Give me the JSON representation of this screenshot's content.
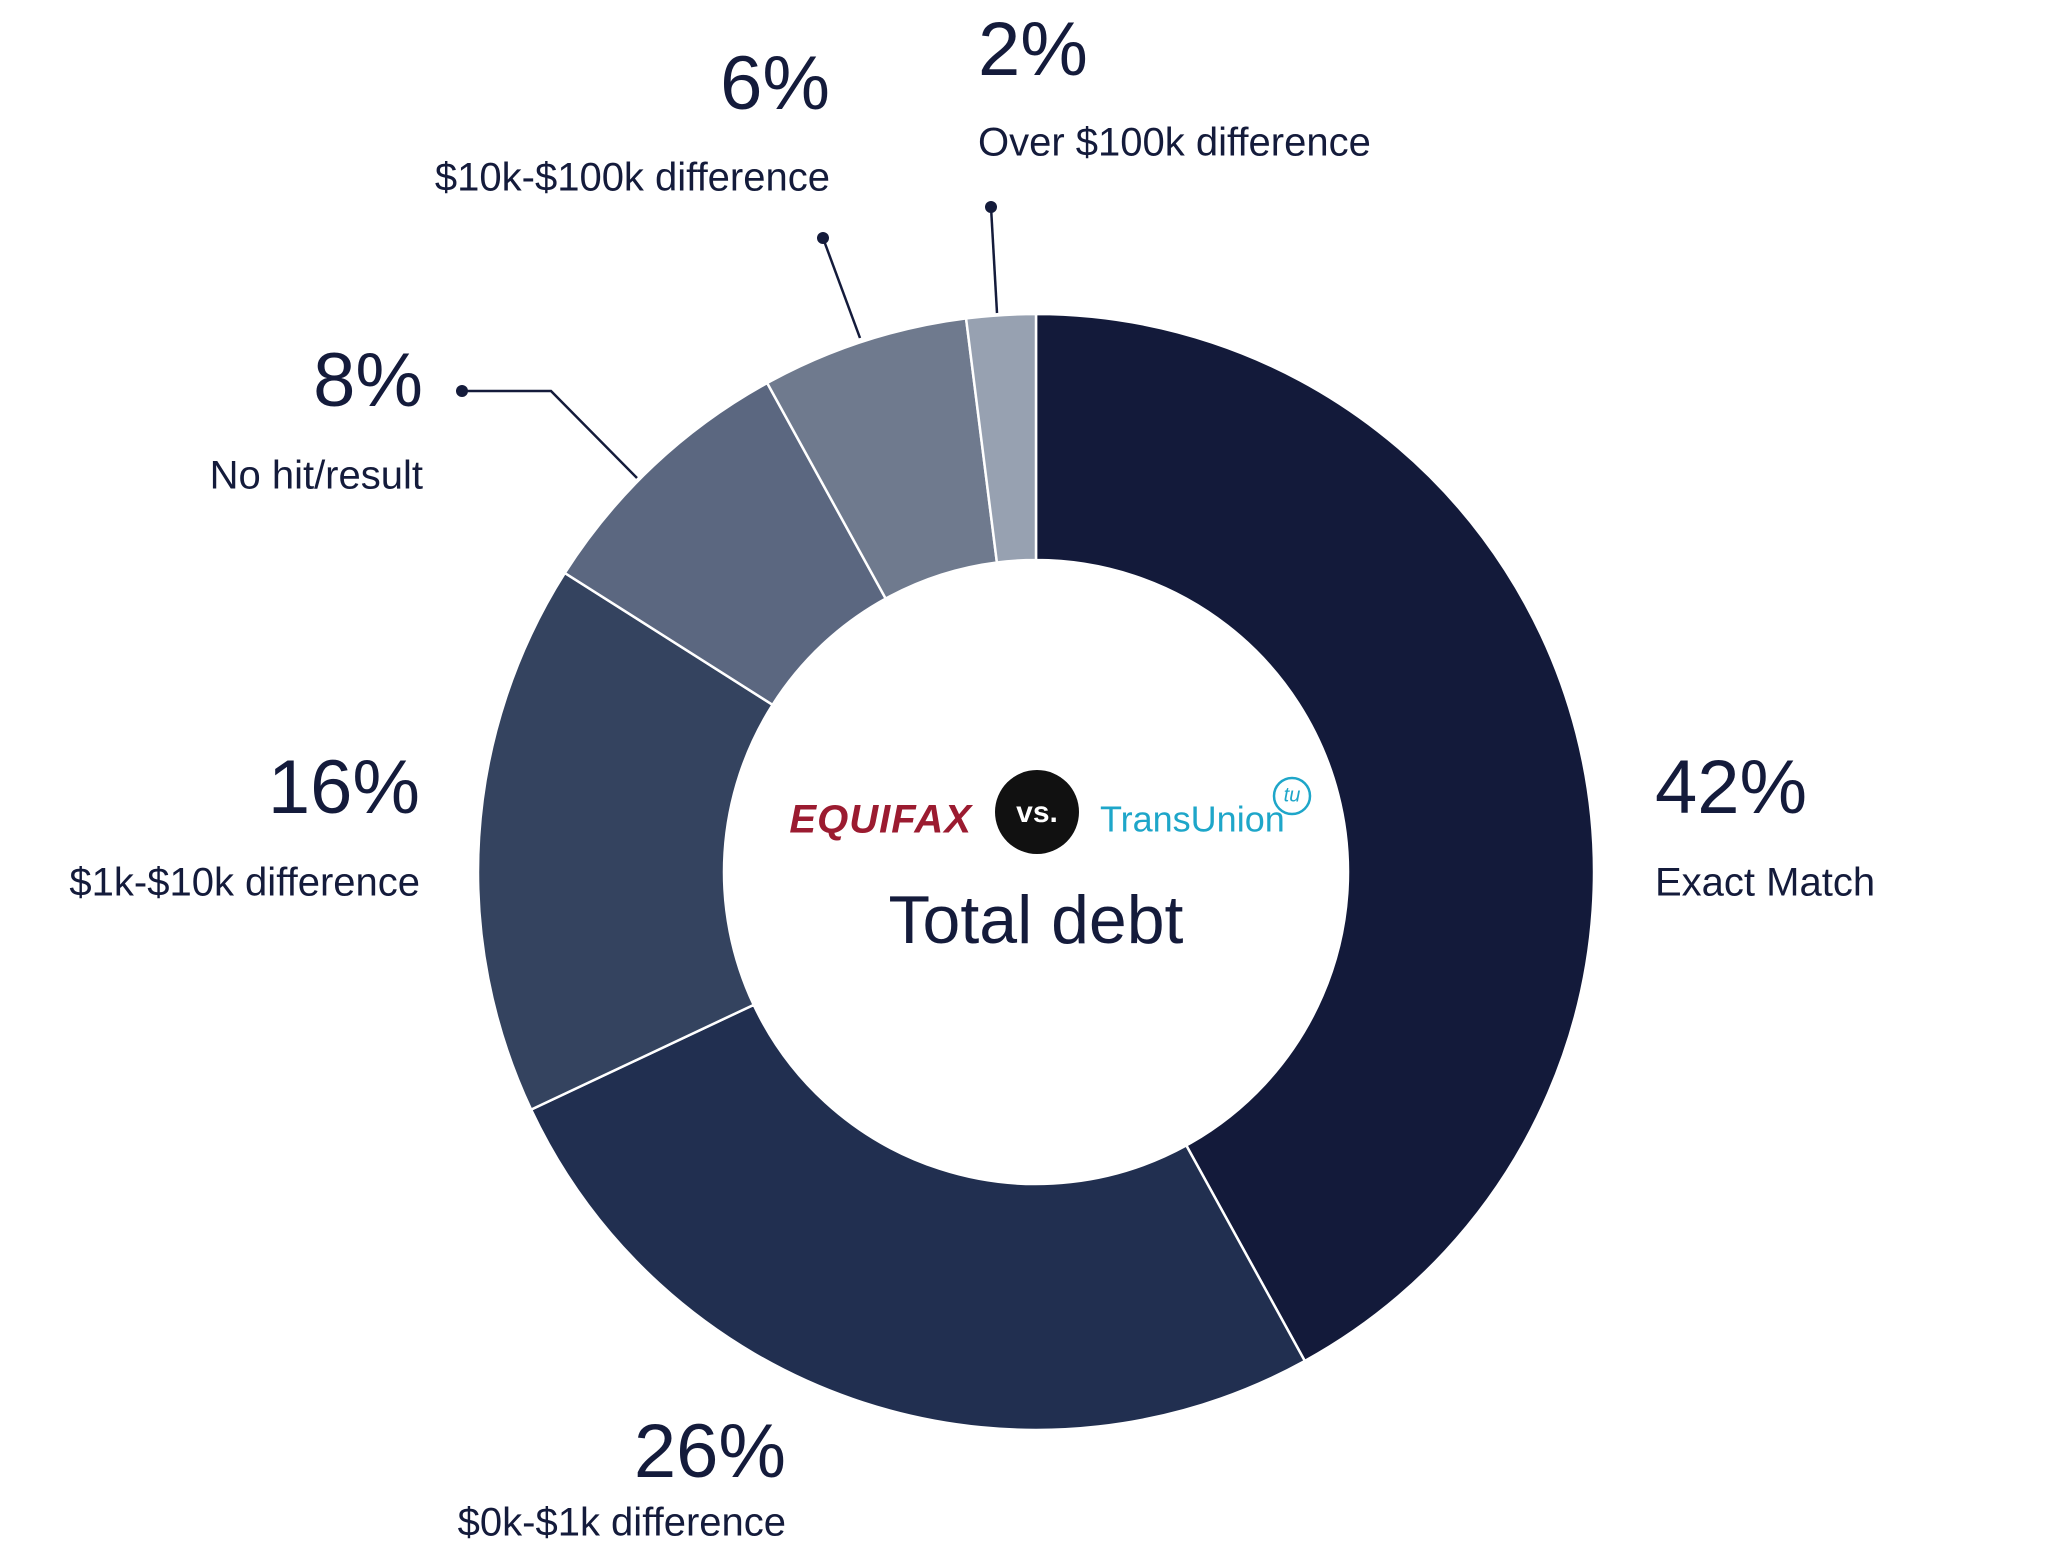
{
  "chart_data": {
    "type": "donut",
    "center_label": "Total debt",
    "annotations": [
      "EQUIFAX",
      "vs.",
      "TransUnion",
      "tu"
    ],
    "categories": [
      "Exact Match",
      "$0k-$1k difference",
      "$1k-$10k difference",
      "No hit/result",
      "$10k-$100k difference",
      "Over $100k difference"
    ],
    "values": [
      42,
      26,
      16,
      8,
      6,
      2
    ],
    "value_labels": [
      "42%",
      "26%",
      "16%",
      "8%",
      "6%",
      "2%"
    ],
    "colors": [
      "#131a3a",
      "#212f50",
      "#34435f",
      "#5b6780",
      "#6f7a8e",
      "#97a1b1"
    ]
  }
}
